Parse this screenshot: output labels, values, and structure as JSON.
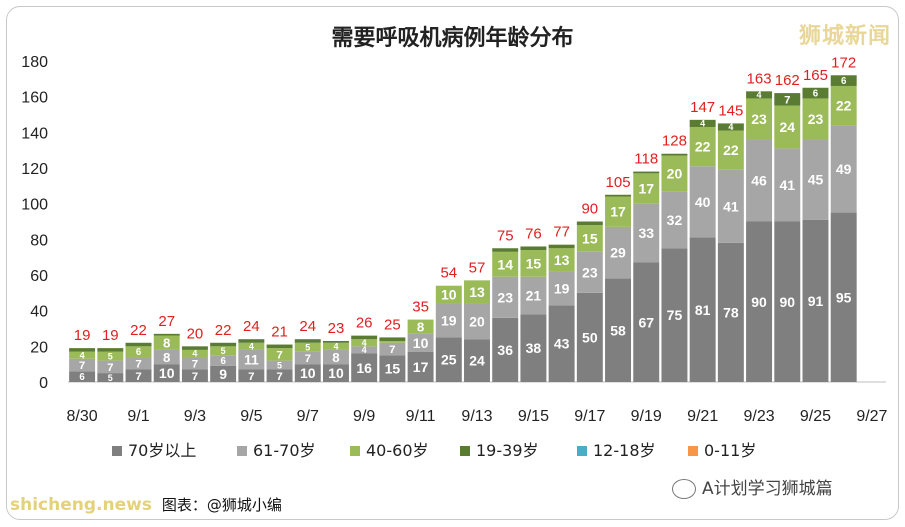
{
  "title": "需要呼吸机病例年龄分布",
  "brand": "狮城新闻",
  "watermark_left": "shicheng.news",
  "credit": "图表：@狮城小编",
  "watermark_right": "A计划学习狮城篇",
  "chart_data": {
    "type": "bar",
    "stacked": true,
    "title": "需要呼吸机病例年龄分布",
    "ylim": [
      0,
      180
    ],
    "yticks": [
      0,
      20,
      40,
      60,
      80,
      100,
      120,
      140,
      160,
      180
    ],
    "grid": false,
    "legend_position": "bottom",
    "categories": [
      "8/30",
      "8/31",
      "9/1",
      "9/2",
      "9/3",
      "9/4",
      "9/5",
      "9/6",
      "9/7",
      "9/8",
      "9/9",
      "9/10",
      "9/11",
      "9/12",
      "9/13",
      "9/14",
      "9/15",
      "9/16",
      "9/17",
      "9/18",
      "9/19",
      "9/20",
      "9/21",
      "9/22",
      "9/23",
      "9/24",
      "9/25",
      "9/26",
      "9/27"
    ],
    "x_tick_labels": [
      "8/30",
      "",
      "9/1",
      "",
      "9/3",
      "",
      "9/5",
      "",
      "9/7",
      "",
      "9/9",
      "",
      "9/11",
      "",
      "9/13",
      "",
      "9/15",
      "",
      "9/17",
      "",
      "9/19",
      "",
      "9/21",
      "",
      "9/23",
      "",
      "9/25",
      "",
      "9/27"
    ],
    "series": [
      {
        "name": "70岁以上",
        "color": "#7f7f7f",
        "values": [
          6,
          5,
          7,
          10,
          7,
          9,
          7,
          7,
          10,
          10,
          16,
          15,
          17,
          25,
          24,
          36,
          38,
          43,
          50,
          58,
          67,
          75,
          81,
          78,
          90,
          90,
          91,
          95,
          null
        ]
      },
      {
        "name": "61-70岁",
        "color": "#a6a6a6",
        "values": [
          7,
          7,
          7,
          8,
          7,
          6,
          11,
          5,
          7,
          8,
          4,
          7,
          10,
          19,
          20,
          23,
          21,
          19,
          23,
          29,
          33,
          32,
          40,
          41,
          46,
          41,
          45,
          49,
          null
        ]
      },
      {
        "name": "40-60岁",
        "color": "#9bbb59",
        "values": [
          4,
          5,
          6,
          8,
          4,
          5,
          4,
          7,
          5,
          4,
          4,
          1,
          8,
          10,
          13,
          14,
          15,
          13,
          15,
          17,
          17,
          20,
          22,
          22,
          23,
          24,
          23,
          22,
          null
        ]
      },
      {
        "name": "19-39岁",
        "color": "#5a7c32",
        "values": [
          2,
          2,
          2,
          1,
          2,
          2,
          2,
          2,
          2,
          1,
          2,
          2,
          0,
          0,
          0,
          2,
          2,
          2,
          2,
          1,
          1,
          1,
          4,
          4,
          4,
          7,
          6,
          6,
          null
        ]
      },
      {
        "name": "12-18岁",
        "color": "#4bacc6",
        "values": [
          0,
          0,
          0,
          0,
          0,
          0,
          0,
          0,
          0,
          0,
          0,
          0,
          0,
          0,
          0,
          0,
          0,
          0,
          0,
          0,
          0,
          0,
          0,
          0,
          0,
          0,
          0,
          0,
          null
        ]
      },
      {
        "name": "0-11岁",
        "color": "#f79646",
        "values": [
          0,
          0,
          0,
          0,
          0,
          0,
          0,
          0,
          0,
          0,
          0,
          0,
          0,
          0,
          0,
          0,
          0,
          0,
          0,
          0,
          0,
          0,
          0,
          0,
          0,
          0,
          0,
          0,
          null
        ]
      }
    ],
    "totals": [
      19,
      19,
      22,
      27,
      20,
      22,
      24,
      21,
      24,
      23,
      26,
      25,
      35,
      54,
      57,
      75,
      76,
      77,
      90,
      105,
      118,
      128,
      147,
      145,
      163,
      162,
      165,
      172,
      null
    ],
    "total_color": "#e02020"
  }
}
